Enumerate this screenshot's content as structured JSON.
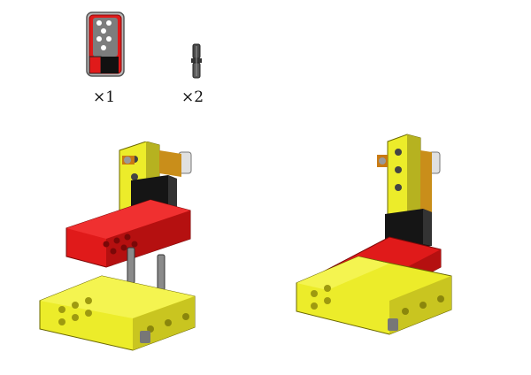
{
  "parts": [
    {
      "name": "controller-block",
      "quantity": "×1"
    },
    {
      "name": "connector-pin",
      "quantity": "×2"
    }
  ],
  "colors": {
    "yellow": "#ecec2a",
    "yellow_dark": "#9e9a10",
    "red": "#e01a1a",
    "red_dark": "#8c0a0a",
    "black": "#151515",
    "grey": "#8a8a8a",
    "orange": "#d98a1a"
  }
}
